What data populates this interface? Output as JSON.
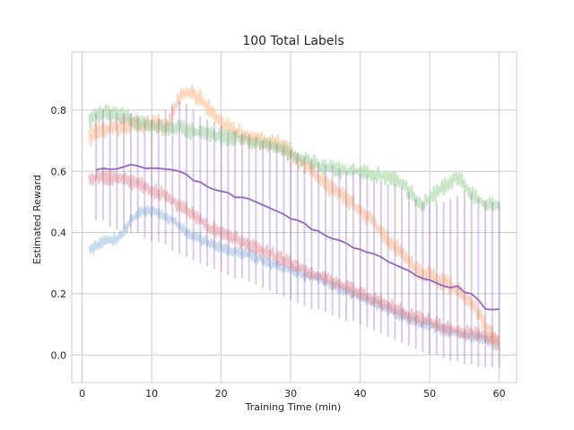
{
  "chart_data": {
    "type": "line",
    "title": "100 Total Labels",
    "xlabel": "Training Time (min)",
    "ylabel": "Estimated Reward",
    "xlim": [
      -1.5,
      62.5
    ],
    "ylim": [
      -0.09,
      0.99
    ],
    "xticks": [
      0,
      10,
      20,
      30,
      40,
      50,
      60
    ],
    "yticks": [
      0.0,
      0.2,
      0.4,
      0.6,
      0.8
    ],
    "ytick_labels": [
      "0.0",
      "0.2",
      "0.4",
      "0.6",
      "0.8"
    ],
    "grid": true,
    "legend": "none",
    "series": [
      {
        "color": "#8fb8dd",
        "opacity": 0.5,
        "noise": 0.014,
        "step": 0.2,
        "x": [
          1,
          2,
          3,
          5,
          6,
          7,
          8,
          9,
          10,
          11,
          12,
          13,
          14,
          15,
          16,
          18,
          20,
          22,
          24,
          26,
          28,
          30,
          32,
          34,
          36,
          38,
          40,
          42,
          44,
          46,
          48,
          50,
          52,
          54,
          56,
          58,
          60
        ],
        "values": [
          0.34,
          0.36,
          0.37,
          0.38,
          0.4,
          0.44,
          0.46,
          0.47,
          0.47,
          0.46,
          0.45,
          0.44,
          0.42,
          0.4,
          0.39,
          0.37,
          0.35,
          0.34,
          0.33,
          0.31,
          0.29,
          0.28,
          0.26,
          0.25,
          0.23,
          0.21,
          0.19,
          0.17,
          0.15,
          0.13,
          0.11,
          0.1,
          0.08,
          0.07,
          0.06,
          0.05,
          0.03
        ]
      },
      {
        "color": "#ffb27a",
        "opacity": 0.5,
        "noise": 0.022,
        "step": 0.2,
        "x": [
          1,
          2,
          4,
          6,
          8,
          10,
          11,
          12,
          13,
          14,
          15,
          16,
          17,
          18,
          19,
          20,
          22,
          24,
          26,
          28,
          30,
          32,
          34,
          36,
          38,
          40,
          42,
          44,
          46,
          48,
          50,
          52,
          54,
          56,
          58,
          60
        ],
        "values": [
          0.71,
          0.73,
          0.74,
          0.75,
          0.75,
          0.75,
          0.76,
          0.74,
          0.79,
          0.84,
          0.86,
          0.85,
          0.84,
          0.81,
          0.79,
          0.76,
          0.73,
          0.71,
          0.7,
          0.69,
          0.66,
          0.62,
          0.58,
          0.54,
          0.51,
          0.47,
          0.43,
          0.38,
          0.33,
          0.28,
          0.26,
          0.24,
          0.21,
          0.17,
          0.1,
          0.03
        ]
      },
      {
        "color": "#8fd08f",
        "opacity": 0.5,
        "noise": 0.02,
        "step": 0.2,
        "x": [
          1,
          2,
          3,
          4,
          6,
          8,
          10,
          12,
          14,
          16,
          18,
          20,
          22,
          24,
          26,
          28,
          30,
          32,
          34,
          36,
          38,
          40,
          42,
          44,
          46,
          48,
          49,
          50,
          52,
          54,
          56,
          58,
          60
        ],
        "values": [
          0.76,
          0.78,
          0.79,
          0.79,
          0.78,
          0.76,
          0.75,
          0.74,
          0.74,
          0.73,
          0.72,
          0.71,
          0.71,
          0.7,
          0.69,
          0.68,
          0.66,
          0.64,
          0.62,
          0.61,
          0.6,
          0.6,
          0.59,
          0.58,
          0.56,
          0.51,
          0.49,
          0.51,
          0.55,
          0.58,
          0.53,
          0.49,
          0.49
        ]
      },
      {
        "color": "#e88a8a",
        "opacity": 0.5,
        "noise": 0.018,
        "step": 0.2,
        "x": [
          1,
          2,
          4,
          6,
          8,
          10,
          12,
          14,
          16,
          18,
          20,
          22,
          24,
          26,
          28,
          30,
          32,
          34,
          36,
          38,
          40,
          42,
          44,
          46,
          48,
          50,
          52,
          54,
          56,
          58,
          60
        ],
        "values": [
          0.58,
          0.58,
          0.58,
          0.57,
          0.56,
          0.54,
          0.52,
          0.49,
          0.46,
          0.42,
          0.4,
          0.38,
          0.36,
          0.34,
          0.32,
          0.3,
          0.28,
          0.26,
          0.24,
          0.22,
          0.2,
          0.18,
          0.16,
          0.14,
          0.12,
          0.11,
          0.09,
          0.08,
          0.07,
          0.06,
          0.05
        ]
      }
    ],
    "mean": {
      "color": "#9467bd",
      "x": [
        2,
        3,
        4,
        5,
        6,
        7,
        8,
        9,
        10,
        11,
        12,
        13,
        14,
        15,
        16,
        17,
        18,
        19,
        20,
        21,
        22,
        23,
        24,
        25,
        26,
        27,
        28,
        29,
        30,
        31,
        32,
        33,
        34,
        35,
        36,
        37,
        38,
        39,
        40,
        41,
        42,
        43,
        44,
        45,
        46,
        47,
        48,
        49,
        50,
        51,
        52,
        53,
        54,
        55,
        56,
        57,
        58,
        59,
        60
      ],
      "values": [
        0.605,
        0.61,
        0.607,
        0.608,
        0.615,
        0.622,
        0.618,
        0.61,
        0.61,
        0.61,
        0.607,
        0.605,
        0.6,
        0.59,
        0.57,
        0.565,
        0.55,
        0.54,
        0.535,
        0.53,
        0.515,
        0.515,
        0.51,
        0.5,
        0.49,
        0.48,
        0.47,
        0.46,
        0.445,
        0.44,
        0.43,
        0.41,
        0.405,
        0.39,
        0.38,
        0.375,
        0.365,
        0.35,
        0.345,
        0.335,
        0.33,
        0.32,
        0.305,
        0.295,
        0.285,
        0.275,
        0.26,
        0.25,
        0.245,
        0.235,
        0.225,
        0.22,
        0.225,
        0.205,
        0.2,
        0.18,
        0.15,
        0.148,
        0.15
      ],
      "err_lower": [
        0.44,
        0.44,
        0.42,
        0.41,
        0.41,
        0.4,
        0.4,
        0.38,
        0.37,
        0.37,
        0.36,
        0.34,
        0.33,
        0.32,
        0.31,
        0.3,
        0.29,
        0.28,
        0.27,
        0.26,
        0.25,
        0.25,
        0.24,
        0.23,
        0.22,
        0.21,
        0.2,
        0.19,
        0.18,
        0.17,
        0.16,
        0.15,
        0.15,
        0.14,
        0.13,
        0.12,
        0.11,
        0.11,
        0.1,
        0.09,
        0.08,
        0.07,
        0.06,
        0.05,
        0.04,
        0.03,
        0.02,
        0.01,
        0.0,
        0.0,
        -0.01,
        -0.02,
        -0.02,
        -0.03,
        -0.03,
        -0.04,
        -0.04,
        -0.04,
        -0.04
      ],
      "err_upper": [
        0.79,
        0.8,
        0.8,
        0.79,
        0.79,
        0.79,
        0.78,
        0.78,
        0.77,
        0.77,
        0.8,
        0.82,
        0.83,
        0.82,
        0.8,
        0.78,
        0.77,
        0.76,
        0.75,
        0.73,
        0.73,
        0.72,
        0.72,
        0.71,
        0.7,
        0.7,
        0.69,
        0.68,
        0.67,
        0.66,
        0.65,
        0.64,
        0.63,
        0.62,
        0.62,
        0.61,
        0.6,
        0.6,
        0.59,
        0.59,
        0.58,
        0.57,
        0.56,
        0.56,
        0.55,
        0.53,
        0.51,
        0.5,
        0.5,
        0.5,
        0.5,
        0.51,
        0.52,
        0.54,
        0.53,
        0.51,
        0.5,
        0.5,
        0.5
      ]
    }
  }
}
